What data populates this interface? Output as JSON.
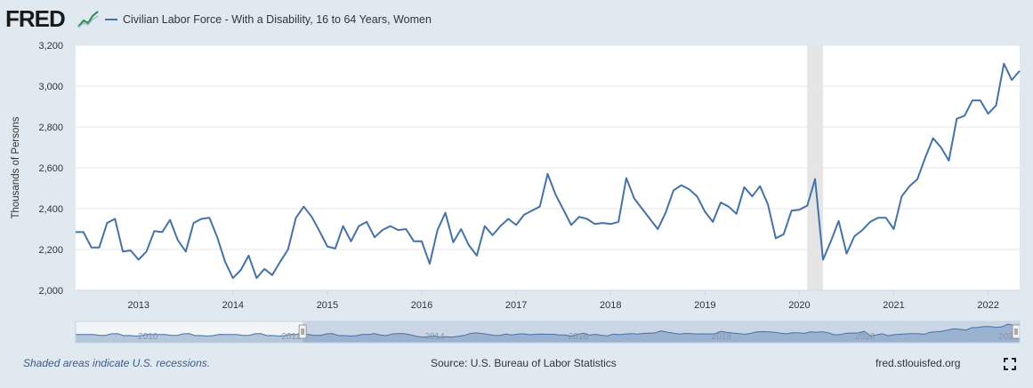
{
  "header": {
    "logo_text": "FRED",
    "logo_icon": "line-graph-icon",
    "legend_label": "Civilian Labor Force - With a Disability, 16 to 64 Years, Women"
  },
  "footer": {
    "note": "Shaded areas indicate U.S. recessions.",
    "source": "Source: U.S. Bureau of Labor Statistics",
    "site": "fred.stlouisfed.org",
    "fullscreen_icon": "expand-icon"
  },
  "colors": {
    "series": "#4572a7",
    "recession": "#e5e5e5",
    "background": "#e1e9f0",
    "navigator": "#bccbe0"
  },
  "chart_data": {
    "type": "line",
    "title": "",
    "xlabel": "",
    "ylabel": "Thousands of Persons",
    "ylim": [
      2000,
      3200
    ],
    "yticks": [
      "2,000",
      "2,200",
      "2,400",
      "2,600",
      "2,800",
      "3,000",
      "3,200"
    ],
    "xticks": [
      "2013",
      "2014",
      "2015",
      "2016",
      "2017",
      "2018",
      "2019",
      "2020",
      "2021",
      "2022"
    ],
    "grid": true,
    "recessions": [
      {
        "start": "2020-02",
        "end": "2020-04"
      }
    ],
    "navigator_labels": [
      "2010",
      "2012",
      "2014",
      "2016",
      "2018",
      "2020",
      "2022"
    ],
    "series": [
      {
        "start": "2012-05",
        "values": [
          2285,
          2285,
          2210,
          2210,
          2330,
          2350,
          2190,
          2195,
          2150,
          2190,
          2290,
          2285,
          2345,
          2245,
          2190,
          2330,
          2350,
          2355,
          2260,
          2140,
          2060,
          2100,
          2170,
          2060,
          2105,
          2075,
          2140,
          2200,
          2355,
          2410,
          2360,
          2290,
          2215,
          2205,
          2315,
          2240,
          2315,
          2335,
          2260,
          2295,
          2315,
          2295,
          2300,
          2240,
          2240,
          2130,
          2295,
          2380,
          2235,
          2300,
          2220,
          2170,
          2315,
          2270,
          2315,
          2350,
          2320,
          2370,
          2390,
          2410,
          2570,
          2470,
          2395,
          2320,
          2360,
          2350,
          2325,
          2330,
          2325,
          2335,
          2550,
          2450,
          2400,
          2350,
          2300,
          2380,
          2490,
          2515,
          2495,
          2460,
          2385,
          2335,
          2430,
          2410,
          2375,
          2505,
          2460,
          2510,
          2420,
          2255,
          2275,
          2390,
          2395,
          2415,
          2545,
          2150,
          2240,
          2340,
          2180,
          2265,
          2295,
          2335,
          2355,
          2355,
          2300,
          2460,
          2510,
          2545,
          2650,
          2745,
          2700,
          2635,
          2840,
          2855,
          2930,
          2930,
          2865,
          2905,
          3110,
          3030,
          3075
        ]
      }
    ]
  }
}
